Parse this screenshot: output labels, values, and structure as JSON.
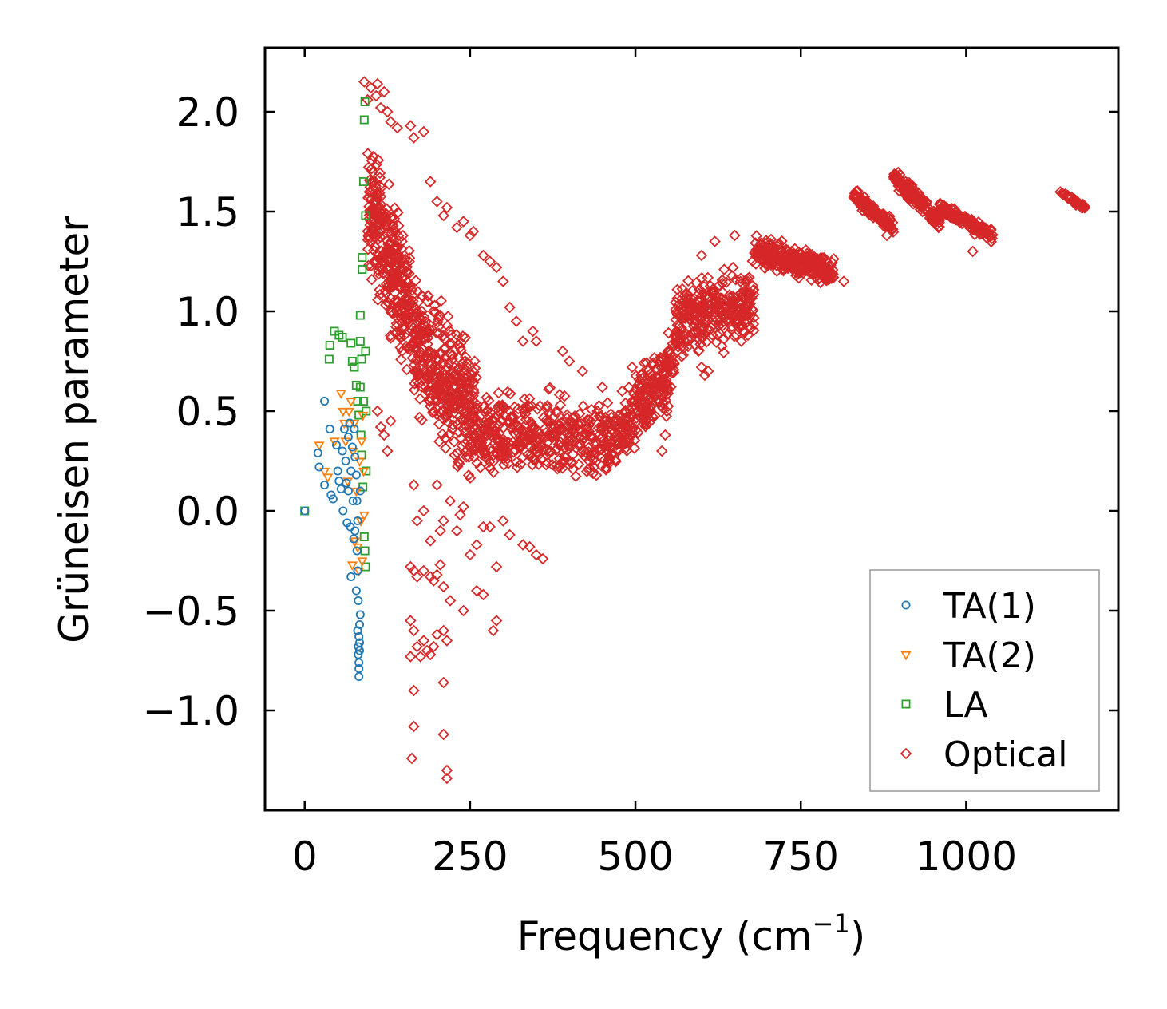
{
  "chart_data": {
    "type": "scatter",
    "title": "",
    "xlabel": "Frequency (cm",
    "xlabel_sup": "−1",
    "xlabel_end": ")",
    "ylabel": "Grüneisen parameter",
    "xlim": [
      -60,
      1230
    ],
    "ylim": [
      -1.5,
      2.32
    ],
    "xticks": [
      0,
      250,
      500,
      750,
      1000
    ],
    "xtick_labels": [
      "0",
      "250",
      "500",
      "750",
      "1000"
    ],
    "yticks": [
      -1.0,
      -0.5,
      0.0,
      0.5,
      1.0,
      1.5,
      2.0
    ],
    "ytick_labels": [
      "−1.0",
      "−0.5",
      "0.0",
      "0.5",
      "1.0",
      "1.5",
      "2.0"
    ],
    "legend_position": "lower-right",
    "series": [
      {
        "name": "TA(1)",
        "color": "#1f77b4",
        "marker": "circle",
        "points": [
          [
            0,
            0.0
          ],
          [
            20,
            0.29
          ],
          [
            22,
            0.22
          ],
          [
            30,
            0.55
          ],
          [
            30,
            0.13
          ],
          [
            38,
            0.41
          ],
          [
            40,
            0.08
          ],
          [
            43,
            0.06
          ],
          [
            48,
            0.33
          ],
          [
            50,
            0.2
          ],
          [
            52,
            0.15
          ],
          [
            55,
            0.11
          ],
          [
            57,
            0.3
          ],
          [
            58,
            0.0
          ],
          [
            60,
            0.41
          ],
          [
            62,
            0.25
          ],
          [
            63,
            0.14
          ],
          [
            64,
            -0.06
          ],
          [
            66,
            0.37
          ],
          [
            66,
            0.1
          ],
          [
            68,
            0.44
          ],
          [
            69,
            -0.08
          ],
          [
            70,
            0.2
          ],
          [
            70,
            -0.33
          ],
          [
            72,
            0.32
          ],
          [
            73,
            0.05
          ],
          [
            74,
            -0.14
          ],
          [
            75,
            0.41
          ],
          [
            76,
            0.27
          ],
          [
            76,
            -0.1
          ],
          [
            78,
            0.18
          ],
          [
            78,
            -0.4
          ],
          [
            79,
            -0.2
          ],
          [
            79,
            0.05
          ],
          [
            80,
            -0.05
          ],
          [
            80,
            -0.3
          ],
          [
            80,
            -0.6
          ],
          [
            81,
            -0.45
          ],
          [
            81,
            -0.68
          ],
          [
            81,
            -0.72
          ],
          [
            82,
            -0.63
          ],
          [
            82,
            -0.76
          ],
          [
            82,
            -0.79
          ],
          [
            82,
            -0.83
          ],
          [
            83,
            -0.57
          ],
          [
            83,
            -0.66
          ],
          [
            83,
            -0.7
          ],
          [
            84,
            -0.52
          ],
          [
            84,
            0.1
          ]
        ]
      },
      {
        "name": "TA(2)",
        "color": "#ff7f0e",
        "marker": "triangle",
        "points": [
          [
            22,
            0.33
          ],
          [
            30,
            0.2
          ],
          [
            35,
            0.17
          ],
          [
            45,
            0.35
          ],
          [
            55,
            0.59
          ],
          [
            58,
            0.5
          ],
          [
            60,
            0.44
          ],
          [
            62,
            0.35
          ],
          [
            65,
            0.15
          ],
          [
            67,
            0.5
          ],
          [
            70,
            0.55
          ],
          [
            72,
            -0.27
          ],
          [
            73,
            0.3
          ],
          [
            75,
            0.44
          ],
          [
            76,
            -0.15
          ],
          [
            78,
            0.1
          ],
          [
            80,
            -0.18
          ],
          [
            82,
            -0.3
          ],
          [
            83,
            0.25
          ],
          [
            85,
            -0.05
          ],
          [
            86,
            0.35
          ],
          [
            87,
            -0.25
          ],
          [
            88,
            0.48
          ],
          [
            89,
            0.2
          ],
          [
            90,
            -0.02
          ]
        ]
      },
      {
        "name": "LA",
        "color": "#2ca02c",
        "marker": "square",
        "points": [
          [
            0,
            0.0
          ],
          [
            37,
            0.76
          ],
          [
            38,
            0.83
          ],
          [
            45,
            0.9
          ],
          [
            52,
            0.88
          ],
          [
            57,
            0.87
          ],
          [
            70,
            0.84
          ],
          [
            72,
            0.75
          ],
          [
            75,
            0.72
          ],
          [
            78,
            0.63
          ],
          [
            80,
            0.55
          ],
          [
            82,
            0.48
          ],
          [
            84,
            0.98
          ],
          [
            84,
            0.85
          ],
          [
            84,
            0.62
          ],
          [
            85,
            0.38
          ],
          [
            86,
            0.76
          ],
          [
            86,
            0.28
          ],
          [
            87,
            1.27
          ],
          [
            87,
            1.21
          ],
          [
            88,
            0.12
          ],
          [
            89,
            1.65
          ],
          [
            89,
            0.55
          ],
          [
            90,
            1.96
          ],
          [
            90,
            -0.13
          ],
          [
            91,
            2.05
          ],
          [
            91,
            -0.2
          ],
          [
            92,
            1.48
          ],
          [
            92,
            -0.28
          ],
          [
            92,
            0.8
          ],
          [
            93,
            0.5
          ],
          [
            93,
            0.2
          ]
        ]
      },
      {
        "name": "Optical",
        "color": "#d62728",
        "marker": "diamond",
        "clusters": [
          {
            "x": [
              95,
              160
            ],
            "y_center": [
              1.55,
              1.0
            ],
            "spread": 0.45,
            "count": 320
          },
          {
            "x": [
              160,
              260
            ],
            "y_center": [
              0.85,
              0.45
            ],
            "spread": 0.45,
            "count": 380
          },
          {
            "x": [
              260,
              470
            ],
            "y_center": [
              0.4,
              0.35
            ],
            "spread": 0.28,
            "count": 420
          },
          {
            "x": [
              470,
              560
            ],
            "y_center": [
              0.35,
              0.75
            ],
            "spread": 0.25,
            "count": 240
          },
          {
            "x": [
              560,
              680
            ],
            "y_center": [
              0.95,
              1.05
            ],
            "spread": 0.25,
            "count": 300
          },
          {
            "x": [
              680,
              800
            ],
            "y_center": [
              1.3,
              1.2
            ],
            "spread": 0.1,
            "count": 260
          },
          {
            "x": [
              830,
              890
            ],
            "y_center": [
              1.58,
              1.42
            ],
            "spread": 0.05,
            "count": 120
          },
          {
            "x": [
              890,
              960
            ],
            "y_center": [
              1.68,
              1.45
            ],
            "spread": 0.06,
            "count": 140
          },
          {
            "x": [
              960,
              1040
            ],
            "y_center": [
              1.52,
              1.38
            ],
            "spread": 0.05,
            "count": 120
          },
          {
            "x": [
              1140,
              1180
            ],
            "y_center": [
              1.6,
              1.52
            ],
            "spread": 0.02,
            "count": 40
          }
        ],
        "points": [
          [
            90,
            2.15
          ],
          [
            100,
            2.12
          ],
          [
            110,
            2.14
          ],
          [
            108,
            2.08
          ],
          [
            120,
            2.1
          ],
          [
            95,
            2.06
          ],
          [
            115,
            2.02
          ],
          [
            125,
            2.0
          ],
          [
            130,
            1.95
          ],
          [
            140,
            1.92
          ],
          [
            160,
            1.93
          ],
          [
            165,
            1.87
          ],
          [
            180,
            1.9
          ],
          [
            190,
            1.65
          ],
          [
            200,
            1.55
          ],
          [
            210,
            1.48
          ],
          [
            215,
            1.52
          ],
          [
            230,
            1.42
          ],
          [
            240,
            1.45
          ],
          [
            250,
            1.38
          ],
          [
            255,
            1.4
          ],
          [
            270,
            1.28
          ],
          [
            280,
            1.25
          ],
          [
            290,
            1.22
          ],
          [
            300,
            1.15
          ],
          [
            310,
            1.02
          ],
          [
            320,
            0.95
          ],
          [
            330,
            0.85
          ],
          [
            345,
            0.9
          ],
          [
            350,
            0.85
          ],
          [
            390,
            0.8
          ],
          [
            400,
            0.75
          ],
          [
            420,
            0.7
          ],
          [
            450,
            0.62
          ],
          [
            480,
            0.6
          ],
          [
            495,
            0.72
          ],
          [
            540,
            0.3
          ],
          [
            545,
            0.38
          ],
          [
            110,
            0.5
          ],
          [
            115,
            0.42
          ],
          [
            120,
            0.38
          ],
          [
            125,
            0.3
          ],
          [
            130,
            0.45
          ],
          [
            165,
            0.13
          ],
          [
            170,
            -0.05
          ],
          [
            180,
            0.0
          ],
          [
            190,
            -0.15
          ],
          [
            200,
            0.13
          ],
          [
            205,
            -0.1
          ],
          [
            210,
            -0.05
          ],
          [
            220,
            0.05
          ],
          [
            230,
            -0.1
          ],
          [
            235,
            -0.02
          ],
          [
            240,
            0.02
          ],
          [
            250,
            -0.22
          ],
          [
            260,
            -0.17
          ],
          [
            270,
            -0.08
          ],
          [
            280,
            -0.08
          ],
          [
            290,
            -0.28
          ],
          [
            300,
            -0.05
          ],
          [
            310,
            -0.12
          ],
          [
            330,
            -0.17
          ],
          [
            340,
            -0.18
          ],
          [
            350,
            -0.22
          ],
          [
            360,
            -0.24
          ],
          [
            160,
            -0.28
          ],
          [
            165,
            -0.3
          ],
          [
            170,
            -0.33
          ],
          [
            180,
            -0.3
          ],
          [
            190,
            -0.33
          ],
          [
            195,
            -0.35
          ],
          [
            200,
            -0.32
          ],
          [
            205,
            -0.27
          ],
          [
            210,
            -0.38
          ],
          [
            220,
            -0.45
          ],
          [
            240,
            -0.5
          ],
          [
            260,
            -0.4
          ],
          [
            270,
            -0.42
          ],
          [
            285,
            -0.6
          ],
          [
            290,
            -0.55
          ],
          [
            160,
            -0.55
          ],
          [
            165,
            -0.6
          ],
          [
            170,
            -0.68
          ],
          [
            175,
            -0.73
          ],
          [
            180,
            -0.65
          ],
          [
            185,
            -0.7
          ],
          [
            190,
            -0.72
          ],
          [
            195,
            -0.68
          ],
          [
            200,
            -0.62
          ],
          [
            210,
            -0.6
          ],
          [
            215,
            -0.65
          ],
          [
            160,
            -0.73
          ],
          [
            165,
            -0.9
          ],
          [
            210,
            -0.86
          ],
          [
            165,
            -1.08
          ],
          [
            210,
            -1.12
          ],
          [
            162,
            -1.24
          ],
          [
            215,
            -1.3
          ],
          [
            215,
            -1.34
          ],
          [
            705,
            1.36
          ],
          [
            650,
            1.38
          ],
          [
            620,
            1.35
          ],
          [
            600,
            1.28
          ],
          [
            670,
            0.88
          ],
          [
            660,
            0.85
          ],
          [
            600,
            0.72
          ],
          [
            610,
            0.7
          ],
          [
            605,
            0.68
          ],
          [
            815,
            1.15
          ],
          [
            880,
            1.38
          ],
          [
            1010,
            1.3
          ]
        ]
      }
    ]
  }
}
